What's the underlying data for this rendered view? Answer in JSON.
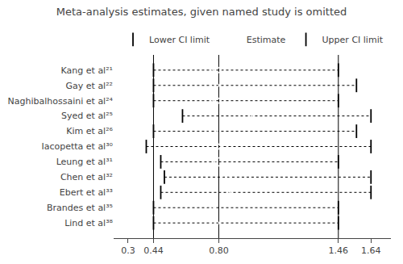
{
  "chart_data": {
    "type": "forest",
    "title": "Meta-analysis estimates, given named study is omitted",
    "categories": [
      "Kang et al²¹",
      "Gay et al²²",
      "Naghibalhossaini et al²⁴",
      "Syed et al²⁵",
      "Kim et al²⁶",
      "Iacopetta et al³⁰",
      "Leung et al³¹",
      "Chen et al³²",
      "Ebert et al³³",
      "Brandes et al³⁵",
      "Lind et al³⁸"
    ],
    "series": [
      {
        "name": "Lower CI limit",
        "marker": "tick",
        "values": [
          0.44,
          0.44,
          0.44,
          0.6,
          0.44,
          0.4,
          0.48,
          0.5,
          0.48,
          0.44,
          0.44
        ]
      },
      {
        "name": "Estimate",
        "marker": "diamond",
        "values": [
          0.79,
          0.78,
          0.79,
          0.96,
          0.77,
          0.79,
          0.8,
          0.84,
          0.84,
          0.75,
          0.78
        ]
      },
      {
        "name": "Upper CI limit",
        "marker": "tick",
        "values": [
          1.46,
          1.56,
          1.46,
          1.64,
          1.56,
          1.64,
          1.46,
          1.64,
          1.64,
          1.46,
          1.46
        ]
      }
    ],
    "line_style": "dotted",
    "vlines": [
      0.44,
      0.8,
      1.46
    ],
    "xlim": [
      0.22,
      1.75
    ],
    "xticks": [
      0.3,
      0.44,
      {
        "value": 0.8,
        "label": "0.80"
      },
      1.46,
      1.64
    ],
    "grid": false,
    "legend": "top",
    "color": "#000000"
  }
}
